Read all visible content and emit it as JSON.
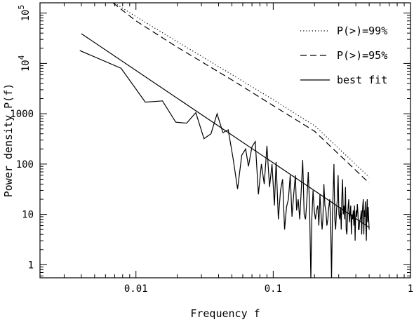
{
  "chart_data": {
    "type": "line",
    "x_scale": "log",
    "y_scale": "log",
    "xlabel": "Frequency f",
    "ylabel": "Power density P(f)",
    "xlim": [
      0.002,
      1
    ],
    "ylim": [
      0.55,
      160000
    ],
    "x_ticks": [
      {
        "value": 0.01,
        "label": "0.01"
      },
      {
        "value": 0.1,
        "label": "0.1"
      },
      {
        "value": 1,
        "label": "1"
      }
    ],
    "y_ticks": [
      {
        "value": 1,
        "label": "1",
        "sup": ""
      },
      {
        "value": 10,
        "label": "10",
        "sup": ""
      },
      {
        "value": 100,
        "label": "100",
        "sup": ""
      },
      {
        "value": 1000,
        "label": "1000",
        "sup": ""
      },
      {
        "value": 10000,
        "label": "10",
        "sup": "4"
      },
      {
        "value": 100000,
        "label": "10",
        "sup": "5"
      }
    ],
    "legend_position": "top-right",
    "series": [
      {
        "name": "P(>)=99%",
        "style": "dotted",
        "x": [
          0.0067,
          0.01,
          0.02,
          0.05,
          0.1,
          0.2,
          0.5
        ],
        "y": [
          170000,
          85000,
          27000,
          6000,
          1900,
          580,
          55
        ]
      },
      {
        "name": "P(>)=95%",
        "style": "dashed",
        "x": [
          0.0068,
          0.01,
          0.02,
          0.05,
          0.1,
          0.2,
          0.5
        ],
        "y": [
          160000,
          70000,
          21000,
          4700,
          1450,
          450,
          42
        ]
      },
      {
        "name": "best fit",
        "style": "solid",
        "x": [
          0.004,
          0.5
        ],
        "y": [
          39000,
          5.5
        ]
      },
      {
        "name": "",
        "style": "solid-data",
        "x": [
          0.0039,
          0.0078,
          0.0117,
          0.0156,
          0.0195,
          0.0234,
          0.0273,
          0.0313,
          0.0352,
          0.039,
          0.043,
          0.047,
          0.051,
          0.055,
          0.059,
          0.063,
          0.066,
          0.07,
          0.074,
          0.078,
          0.082,
          0.086,
          0.09,
          0.094,
          0.098,
          0.102,
          0.105,
          0.109,
          0.113,
          0.117,
          0.121,
          0.125,
          0.129,
          0.133,
          0.137,
          0.141,
          0.145,
          0.148,
          0.152,
          0.156,
          0.16,
          0.164,
          0.168,
          0.172,
          0.176,
          0.18,
          0.184,
          0.188,
          0.191,
          0.195,
          0.199,
          0.203,
          0.207,
          0.211,
          0.215,
          0.219,
          0.223,
          0.227,
          0.23,
          0.234,
          0.238,
          0.242,
          0.246,
          0.25,
          0.254,
          0.258,
          0.262,
          0.266,
          0.27,
          0.273,
          0.277,
          0.281,
          0.285,
          0.289,
          0.293,
          0.297,
          0.301,
          0.305,
          0.309,
          0.313,
          0.316,
          0.32,
          0.324,
          0.328,
          0.332,
          0.336,
          0.34,
          0.344,
          0.348,
          0.352,
          0.355,
          0.359,
          0.363,
          0.367,
          0.371,
          0.375,
          0.379,
          0.383,
          0.387,
          0.391,
          0.395,
          0.398,
          0.402,
          0.406,
          0.41,
          0.414,
          0.418,
          0.422,
          0.426,
          0.43,
          0.434,
          0.438,
          0.441,
          0.445,
          0.449,
          0.453,
          0.457,
          0.461,
          0.465,
          0.469,
          0.473,
          0.477,
          0.48,
          0.484,
          0.488,
          0.492,
          0.496,
          0.5
        ],
        "y": [
          18000,
          8000,
          1700,
          1800,
          680,
          650,
          1050,
          320,
          400,
          1000,
          420,
          480,
          130,
          32,
          150,
          200,
          90,
          220,
          280,
          25,
          100,
          40,
          230,
          35,
          100,
          15,
          110,
          8,
          30,
          50,
          5,
          14,
          20,
          60,
          9,
          25,
          60,
          12,
          20,
          8,
          30,
          120,
          10,
          8,
          20,
          70,
          15,
          0.5,
          8,
          30,
          12,
          8,
          12,
          15,
          6,
          25,
          10,
          5,
          8,
          40,
          15,
          12,
          6,
          8,
          14,
          20,
          7,
          0.5,
          10,
          25,
          100,
          8,
          5,
          12,
          20,
          60,
          10,
          8,
          14,
          5,
          20,
          50,
          10,
          15,
          8,
          35,
          5,
          4,
          9,
          15,
          20,
          7,
          10,
          15,
          4,
          10,
          8,
          12,
          6,
          15,
          3,
          8,
          12,
          9,
          16,
          11,
          5,
          5,
          7,
          8,
          9,
          12,
          4,
          10,
          15,
          20,
          4,
          12,
          9,
          18,
          6,
          3,
          11,
          20,
          7,
          14,
          8,
          5
        ]
      }
    ]
  }
}
